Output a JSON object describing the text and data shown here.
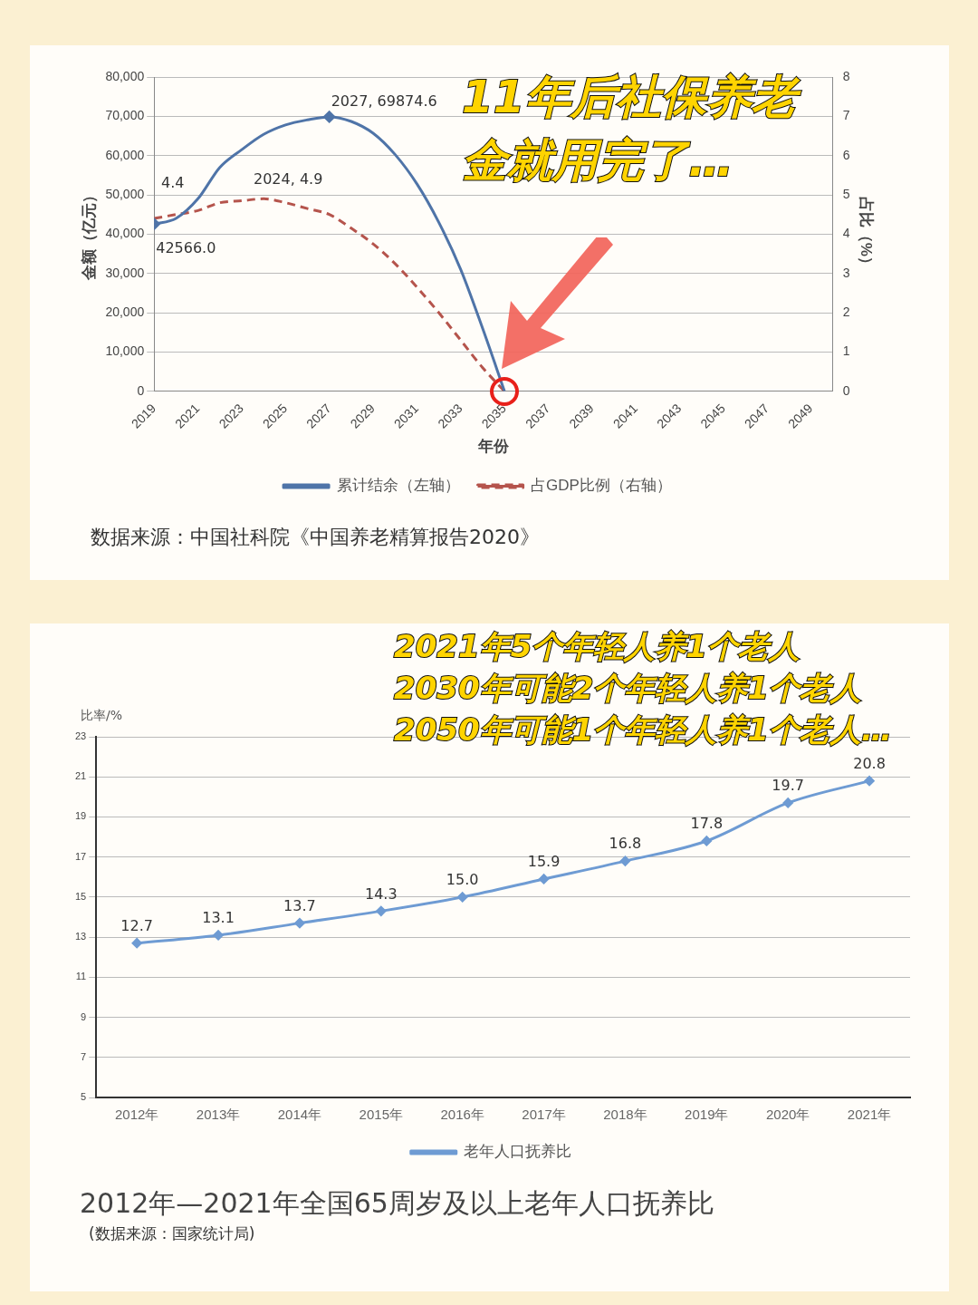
{
  "chart_data": [
    {
      "type": "line",
      "xlabel": "年份",
      "ylabel": "金额（亿元）",
      "y2label": "占比（%）",
      "x": [
        2019,
        2020,
        2021,
        2022,
        2023,
        2024,
        2025,
        2026,
        2027,
        2028,
        2029,
        2030,
        2031,
        2032,
        2033,
        2034,
        2035
      ],
      "series": [
        {
          "name": "累计结余（左轴）",
          "color": "#4f74a8",
          "line_style": "solid",
          "values": [
            42566,
            44000,
            49000,
            57000,
            61500,
            65400,
            67800,
            69100,
            69874.6,
            68700,
            65700,
            60300,
            52800,
            43000,
            31000,
            16000,
            0
          ]
        },
        {
          "name": "占GDP比例（右轴）",
          "color": "#b5544c",
          "axis": "y2",
          "line_style": "dashed",
          "values": [
            4.4,
            4.5,
            4.6,
            4.8,
            4.85,
            4.9,
            4.8,
            4.65,
            4.5,
            4.15,
            3.75,
            3.25,
            2.65,
            2.0,
            1.3,
            0.6,
            0
          ]
        }
      ],
      "xlim": [
        2019,
        2050
      ],
      "xticks": [
        2019,
        2021,
        2023,
        2025,
        2027,
        2029,
        2031,
        2033,
        2035,
        2037,
        2039,
        2041,
        2043,
        2045,
        2047,
        2049
      ],
      "ylim": [
        0,
        80000
      ],
      "yticks": [
        {
          "value": 0,
          "label": "0"
        },
        {
          "value": 10000,
          "label": "10,000"
        },
        {
          "value": 20000,
          "label": "20,000"
        },
        {
          "value": 30000,
          "label": "30,000"
        },
        {
          "value": 40000,
          "label": "40,000"
        },
        {
          "value": 50000,
          "label": "50,000"
        },
        {
          "value": 60000,
          "label": "60,000"
        },
        {
          "value": 70000,
          "label": "70,000"
        },
        {
          "value": 80000,
          "label": "80,000"
        }
      ],
      "y2lim": [
        0,
        8
      ],
      "y2ticks": [
        0,
        1,
        2,
        3,
        4,
        5,
        6,
        7,
        8
      ],
      "grid": "y",
      "legend": "bottom",
      "annotations": [
        {
          "text": "2027, 69874.6",
          "x": 2027,
          "y": 69874.6
        },
        "11年后社保养老金就用完了…",
        "2024, 4.9",
        "4.4",
        {
          "text": "42566.0",
          "x": 2019,
          "y": 42566
        },
        "数据来源：中国社科院《中国养老精算报告2020》"
      ]
    },
    {
      "type": "line",
      "title": "2012年—2021年全国65周岁及以上老年人口抚养比",
      "ylabel": "比率/%",
      "categories": [
        "2012年",
        "2013年",
        "2014年",
        "2015年",
        "2016年",
        "2017年",
        "2018年",
        "2019年",
        "2020年",
        "2021年"
      ],
      "series": [
        {
          "name": "老年人口抚养比",
          "color": "#6e9bd3",
          "values": [
            12.7,
            13.1,
            13.7,
            14.3,
            15.0,
            15.9,
            16.8,
            17.8,
            19.7,
            20.8
          ],
          "value_labels": [
            "12.7",
            "13.1",
            "13.7",
            "14.3",
            "15.0",
            "15.9",
            "16.8",
            "17.8",
            "19.7",
            "20.8"
          ]
        }
      ],
      "ylim": [
        5,
        23
      ],
      "yticks": [
        5,
        7,
        9,
        11,
        13,
        15,
        17,
        19,
        21,
        23
      ],
      "grid": "y",
      "legend": "bottom",
      "marker": "diamond",
      "annotations": [
        "2021年5个年轻人养1个老人",
        "2030年可能2个年轻人养1个老人",
        "2050年可能1个年轻人养1个老人…",
        "(数据来源：国家统计局)"
      ]
    }
  ]
}
